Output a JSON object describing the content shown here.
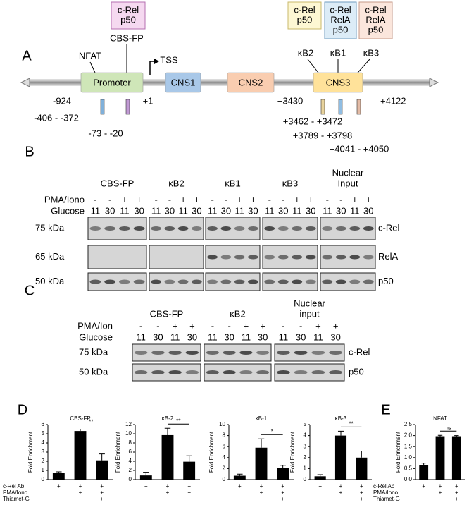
{
  "panel_a": {
    "label": "A",
    "boxes": [
      "Promoter",
      "CNS1",
      "CNS2",
      "CNS3"
    ],
    "factor_boxes": [
      [
        "c-Rel",
        "p50"
      ],
      [
        "c-Rel",
        "p50"
      ],
      [
        "c-Rel",
        "RelA",
        "p50"
      ],
      [
        "c-Rel",
        "RelA",
        "p50"
      ]
    ],
    "sites": [
      "NFAT",
      "CBS-FP",
      "TSS",
      "κB2",
      "κB1",
      "κB3"
    ],
    "positions": [
      "-924",
      "+1",
      "-406 - -372",
      "-73 - -20",
      "+3430",
      "+4122",
      "+3462 - +3472",
      "+3789 - +3798",
      "+4041 - +4050"
    ]
  },
  "panel_b": {
    "label": "B",
    "groups": [
      [
        "CBS-FP"
      ],
      [
        "κB2"
      ],
      [
        "κB1"
      ],
      [
        "κB3"
      ],
      [
        "Nuclear",
        "Input"
      ]
    ],
    "pma_label": "PMA/Iono",
    "pma": [
      "-",
      "-",
      "+",
      "+"
    ],
    "glucose_label": "Glucose",
    "glucose": [
      "11",
      "30",
      "11",
      "30"
    ],
    "weights": [
      "75 kDa",
      "65 kDa",
      "50 kDa"
    ],
    "proteins": [
      "c-Rel",
      "RelA",
      "p50"
    ]
  },
  "panel_c": {
    "label": "C",
    "groups": [
      [
        "CBS-FP"
      ],
      [
        "κB2"
      ],
      [
        "Nuclear",
        "input"
      ]
    ],
    "pma_label": "PMA/Ion",
    "pma": [
      "-",
      "-",
      "+",
      "+"
    ],
    "glucose_label": "Glucose",
    "glucose": [
      "11",
      "30",
      "11",
      "30"
    ],
    "weights": [
      "75 kDa",
      "50 kDa"
    ],
    "proteins": [
      "c-Rel",
      "p50"
    ]
  },
  "panel_d": {
    "label": "D",
    "treatment_labels": [
      "c-Rel Ab",
      "PMA/Iono",
      "Thiamet-G"
    ]
  },
  "panel_e": {
    "label": "E",
    "treatment_labels": [
      "c-Rel Ab",
      "PMA/Iono",
      "Thiamet-G"
    ]
  },
  "chart_data": [
    {
      "type": "bar",
      "title": "CBS-FP",
      "ylabel": "Fold Enrichment",
      "values": [
        0.7,
        5.3,
        2.1
      ],
      "errors": [
        0.15,
        0.2,
        0.7
      ],
      "color": "#000000",
      "ylim": [
        0,
        6
      ],
      "yticks": [
        0,
        1,
        2,
        3,
        4,
        5,
        6
      ],
      "significance": "**",
      "treatment_marks": [
        [
          "+",
          "+",
          "+"
        ],
        [
          null,
          "+",
          "+"
        ],
        [
          null,
          null,
          "+"
        ]
      ]
    },
    {
      "type": "bar",
      "title": "κB-2",
      "ylabel": "Fold Enrichment",
      "values": [
        0.9,
        9.7,
        3.9
      ],
      "errors": [
        0.7,
        1.5,
        1.3
      ],
      "color": "#000000",
      "ylim": [
        0,
        12
      ],
      "yticks": [
        0,
        2,
        4,
        6,
        8,
        10,
        12
      ],
      "significance": "**",
      "treatment_marks": [
        [
          "+",
          "+",
          "+"
        ],
        [
          null,
          "+",
          "+"
        ],
        [
          null,
          null,
          "+"
        ]
      ]
    },
    {
      "type": "bar",
      "title": "κB-1",
      "ylabel": "Fold Enrichment",
      "values": [
        0.7,
        5.8,
        2.1
      ],
      "errors": [
        0.3,
        1.6,
        0.5
      ],
      "color": "#000000",
      "ylim": [
        0,
        10
      ],
      "yticks": [
        0,
        2,
        4,
        6,
        8,
        10
      ],
      "significance": "*",
      "treatment_marks": [
        [
          "+",
          "+",
          "+"
        ],
        [
          null,
          "+",
          "+"
        ],
        [
          null,
          null,
          "+"
        ]
      ]
    },
    {
      "type": "bar",
      "title": "κB-3",
      "ylabel": "Fold Enrichment",
      "values": [
        0.3,
        4.0,
        2.0
      ],
      "errors": [
        0.15,
        0.4,
        0.6
      ],
      "color": "#000000",
      "ylim": [
        0,
        5
      ],
      "yticks": [
        0,
        1,
        2,
        3,
        4,
        5
      ],
      "significance": "**",
      "treatment_marks": [
        [
          "+",
          "+",
          "+"
        ],
        [
          null,
          "+",
          "+"
        ],
        [
          null,
          null,
          "+"
        ]
      ]
    },
    {
      "type": "bar",
      "title": "NFAT",
      "ylabel": "Fold Enrichment",
      "values": [
        0.65,
        1.97,
        1.97
      ],
      "errors": [
        0.1,
        0.04,
        0.03
      ],
      "color": "#000000",
      "ylim": [
        0,
        2.5
      ],
      "yticks": [
        {
          "value": 0,
          "label": "0.0"
        },
        0.5,
        {
          "value": 1,
          "label": "1.0"
        },
        1.5,
        {
          "value": 2,
          "label": "2.0"
        },
        2.5
      ],
      "significance": "ns",
      "treatment_marks": [
        [
          "+",
          "+",
          "+"
        ],
        [
          null,
          "+",
          "+"
        ],
        [
          null,
          null,
          "+"
        ]
      ]
    }
  ]
}
